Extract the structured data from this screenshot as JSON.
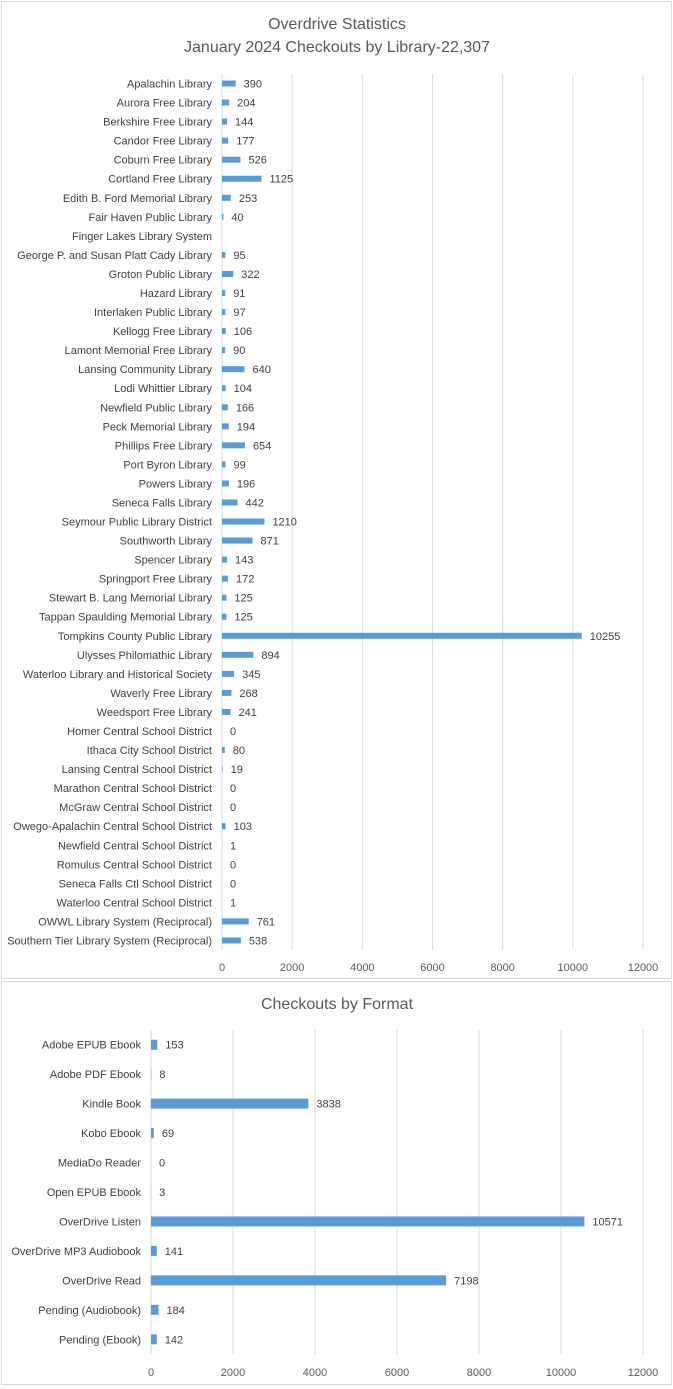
{
  "chart_data": [
    {
      "type": "bar",
      "orientation": "horizontal",
      "title": "Overdrive Statistics",
      "subtitle": "January 2024 Checkouts by Library-22,307",
      "xlim": [
        0,
        12000
      ],
      "x_ticks": [
        "0",
        "2000",
        "4000",
        "6000",
        "8000",
        "10000",
        "12000"
      ],
      "grid": true,
      "legend": "none",
      "bar_color": "#5b9bd5",
      "categories": [
        "Apalachin Library",
        "Aurora Free Library",
        "Berkshire Free Library",
        "Candor Free Library",
        "Coburn Free Library",
        "Cortland Free Library",
        "Edith B. Ford Memorial Library",
        "Fair Haven Public Library",
        "Finger Lakes Library System",
        "George P. and Susan Platt Cady Library",
        "Groton Public Library",
        "Hazard Library",
        "Interlaken Public Library",
        "Kellogg Free Library",
        "Lamont Memorial Free Library",
        "Lansing Community Library",
        "Lodi Whittier Library",
        "Newfield Public Library",
        "Peck Memorial Library",
        "Phillips Free Library",
        "Port Byron Library",
        "Powers Library",
        "Seneca Falls Library",
        "Seymour Public Library District",
        "Southworth Library",
        "Spencer Library",
        "Springport Free Library",
        "Stewart B. Lang Memorial Library",
        "Tappan Spaulding Memorial Library",
        "Tompkins County Public Library",
        "Ulysses Philomathic Library",
        "Waterloo Library and Historical Society",
        "Waverly Free Library",
        "Weedsport Free Library",
        "Homer Central School District",
        "Ithaca City School District",
        "Lansing Central School District",
        "Marathon Central School District",
        "McGraw Central School District",
        "Owego-Apalachin Central School District",
        "Newfield Central School District",
        "Romulus Central School District",
        "Seneca Falls Ctl School District",
        "Waterloo Central School District",
        "OWWL Library System (Reciprocal)",
        "Southern Tier Library System (Reciprocal)"
      ],
      "values": [
        390,
        204,
        144,
        177,
        526,
        1125,
        253,
        40,
        null,
        95,
        322,
        91,
        97,
        106,
        90,
        640,
        104,
        166,
        194,
        654,
        99,
        196,
        442,
        1210,
        871,
        143,
        172,
        125,
        125,
        10255,
        894,
        345,
        268,
        241,
        0,
        80,
        19,
        0,
        0,
        103,
        1,
        0,
        0,
        1,
        761,
        538
      ]
    },
    {
      "type": "bar",
      "orientation": "horizontal",
      "title": "Checkouts by Format",
      "xlim": [
        0,
        12000
      ],
      "x_ticks": [
        "0",
        "2000",
        "4000",
        "6000",
        "8000",
        "10000",
        "12000"
      ],
      "grid": true,
      "legend": "none",
      "bar_color": "#5b9bd5",
      "categories": [
        "Adobe EPUB Ebook",
        "Adobe PDF Ebook",
        "Kindle Book",
        "Kobo Ebook",
        "MediaDo Reader",
        "Open EPUB Ebook",
        "OverDrive Listen",
        "OverDrive MP3 Audiobook",
        "OverDrive Read",
        "Pending (Audiobook)",
        "Pending (Ebook)"
      ],
      "values": [
        153,
        8,
        3838,
        69,
        0,
        3,
        10571,
        141,
        7198,
        184,
        142
      ]
    }
  ]
}
